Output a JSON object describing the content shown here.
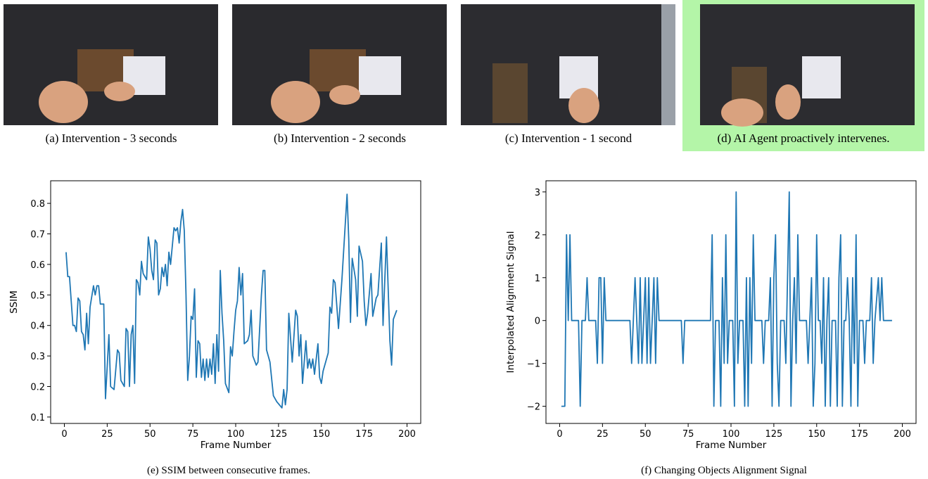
{
  "images": [
    {
      "caption": "(a) Intervention - 3 seconds"
    },
    {
      "caption": "(b) Intervention - 2 seconds"
    },
    {
      "caption": "(c) Intervention - 1 second"
    },
    {
      "caption": "(d) AI Agent proactively intervenes."
    }
  ],
  "chart_data": [
    {
      "type": "line",
      "caption": "(e) SSIM between consecutive frames.",
      "x_label": "Frame Number",
      "y_label": "SSIM",
      "xlim": [
        -8,
        208
      ],
      "ylim": [
        0.079,
        0.874
      ],
      "xticks": [
        0,
        25,
        50,
        75,
        100,
        125,
        150,
        175,
        200
      ],
      "yticks": [
        0.1,
        0.2,
        0.3,
        0.4,
        0.5,
        0.6,
        0.7,
        0.8
      ],
      "x": [
        1,
        2,
        3,
        5,
        6,
        7,
        8,
        9,
        10,
        11,
        12,
        13,
        14,
        15,
        17,
        18,
        19,
        20,
        21,
        23,
        24,
        26,
        27,
        29,
        31,
        32,
        33,
        35,
        36,
        37,
        38,
        39,
        40,
        41,
        42,
        43,
        44,
        45,
        46,
        48,
        49,
        50,
        51,
        52,
        53,
        54,
        55,
        56,
        57,
        58,
        59,
        60,
        61,
        62,
        64,
        65,
        66,
        67,
        68,
        69,
        70,
        71,
        72,
        73,
        74,
        75,
        76,
        77,
        78,
        79,
        80,
        81,
        82,
        83,
        84,
        85,
        86,
        87,
        88,
        89,
        90,
        91,
        92,
        93,
        94,
        96,
        97,
        98,
        99,
        100,
        101,
        102,
        103,
        104,
        105,
        107,
        108,
        109,
        110,
        112,
        113,
        115,
        116,
        117,
        118,
        120,
        122,
        124,
        127,
        128,
        129,
        130,
        131,
        132,
        133,
        135,
        136,
        137,
        138,
        139,
        141,
        142,
        143,
        144,
        145,
        146,
        148,
        149,
        150,
        151,
        152,
        154,
        155,
        156,
        157,
        158,
        160,
        162,
        165,
        166,
        167,
        168,
        170,
        171,
        172,
        174,
        175,
        176,
        177,
        179,
        180,
        182,
        183,
        185,
        186,
        188,
        190,
        191,
        192,
        194
      ],
      "series": [
        {
          "name": "SSIM",
          "color": "#1f77b4",
          "values": [
            0.64,
            0.56,
            0.56,
            0.4,
            0.4,
            0.38,
            0.49,
            0.48,
            0.38,
            0.37,
            0.32,
            0.44,
            0.34,
            0.46,
            0.53,
            0.5,
            0.53,
            0.53,
            0.47,
            0.47,
            0.16,
            0.37,
            0.2,
            0.19,
            0.32,
            0.31,
            0.22,
            0.2,
            0.39,
            0.38,
            0.2,
            0.37,
            0.4,
            0.21,
            0.55,
            0.54,
            0.5,
            0.61,
            0.57,
            0.55,
            0.69,
            0.65,
            0.58,
            0.55,
            0.68,
            0.67,
            0.5,
            0.52,
            0.59,
            0.56,
            0.6,
            0.53,
            0.64,
            0.6,
            0.72,
            0.71,
            0.72,
            0.67,
            0.74,
            0.78,
            0.71,
            0.5,
            0.22,
            0.3,
            0.43,
            0.42,
            0.52,
            0.23,
            0.35,
            0.34,
            0.23,
            0.29,
            0.22,
            0.29,
            0.23,
            0.29,
            0.24,
            0.34,
            0.21,
            0.37,
            0.25,
            0.58,
            0.44,
            0.35,
            0.21,
            0.18,
            0.33,
            0.3,
            0.38,
            0.45,
            0.48,
            0.59,
            0.5,
            0.57,
            0.34,
            0.35,
            0.37,
            0.45,
            0.3,
            0.27,
            0.28,
            0.5,
            0.58,
            0.58,
            0.32,
            0.28,
            0.17,
            0.15,
            0.13,
            0.19,
            0.14,
            0.19,
            0.44,
            0.36,
            0.28,
            0.45,
            0.43,
            0.3,
            0.37,
            0.21,
            0.35,
            0.26,
            0.29,
            0.26,
            0.29,
            0.24,
            0.34,
            0.23,
            0.21,
            0.25,
            0.27,
            0.31,
            0.46,
            0.44,
            0.55,
            0.54,
            0.39,
            0.55,
            0.83,
            0.68,
            0.41,
            0.62,
            0.55,
            0.43,
            0.66,
            0.61,
            0.48,
            0.4,
            0.44,
            0.57,
            0.43,
            0.49,
            0.5,
            0.67,
            0.4,
            0.69,
            0.35,
            0.27,
            0.42,
            0.45
          ]
        }
      ]
    },
    {
      "type": "line",
      "caption": "(f) Changing Objects Alignment Signal",
      "x_label": "Frame Number",
      "y_label": "Interpolated Alignment Signal",
      "xlim": [
        -8,
        208
      ],
      "ylim": [
        -2.4,
        3.26
      ],
      "xticks": [
        0,
        25,
        50,
        75,
        100,
        125,
        150,
        175,
        200
      ],
      "yticks": [
        {
          "value": -2,
          "label": "−2"
        },
        {
          "value": -1,
          "label": "−1"
        },
        0,
        1,
        2,
        3
      ],
      "x": [
        1,
        3,
        4,
        5,
        6,
        7,
        11,
        12,
        13,
        15,
        16,
        17,
        21,
        22,
        23,
        24,
        25,
        26,
        27,
        41,
        42,
        43,
        44,
        45,
        46,
        47,
        48,
        49,
        50,
        51,
        52,
        53,
        54,
        55,
        56,
        57,
        58,
        71,
        72,
        73,
        85,
        88,
        89,
        90,
        91,
        93,
        94,
        95,
        96,
        97,
        98,
        99,
        101,
        102,
        103,
        104,
        105,
        107,
        108,
        109,
        110,
        111,
        112,
        113,
        114,
        118,
        119,
        120,
        122,
        123,
        124,
        125,
        126,
        127,
        128,
        129,
        131,
        132,
        133,
        134,
        135,
        136,
        137,
        138,
        139,
        140,
        144,
        145,
        146,
        147,
        148,
        149,
        150,
        151,
        152,
        153,
        154,
        155,
        156,
        157,
        158,
        159,
        161,
        162,
        163,
        164,
        165,
        166,
        167,
        168,
        169,
        170,
        171,
        172,
        173,
        174,
        175,
        177,
        178,
        179,
        181,
        182,
        183,
        184,
        186,
        187,
        188,
        189,
        194
      ],
      "series": [
        {
          "name": "Alignment",
          "color": "#1f77b4",
          "values": [
            -2,
            -2,
            2,
            0,
            2,
            0,
            0,
            -2,
            0,
            0,
            1,
            0,
            0,
            -1,
            1,
            1,
            -1,
            1,
            0,
            0,
            -1,
            0,
            1,
            0,
            -1,
            1,
            -1,
            0,
            1,
            -1,
            1,
            -1,
            0,
            1,
            -1,
            1,
            0,
            0,
            -1,
            0,
            0,
            0,
            2,
            -2,
            0,
            0,
            -2,
            1,
            -1,
            2,
            -1,
            0,
            0,
            -2,
            3,
            -1,
            0,
            0,
            -2,
            1,
            -2,
            1,
            -1,
            2,
            0,
            0,
            -1,
            0,
            0,
            1,
            -2,
            1,
            2,
            -1,
            -2,
            0,
            0,
            -1,
            1,
            3,
            -2,
            0,
            1,
            -1,
            2,
            0,
            0,
            -1,
            0,
            1,
            -2,
            -1,
            2,
            0,
            0,
            -1,
            1,
            -2,
            0,
            1,
            -2,
            0,
            0,
            -2,
            1,
            2,
            -2,
            0,
            0,
            1,
            0,
            -2,
            1,
            -1,
            2,
            -2,
            0,
            0,
            -1,
            0,
            0,
            1,
            -1,
            0,
            1,
            0,
            1,
            0,
            0
          ]
        }
      ]
    }
  ]
}
